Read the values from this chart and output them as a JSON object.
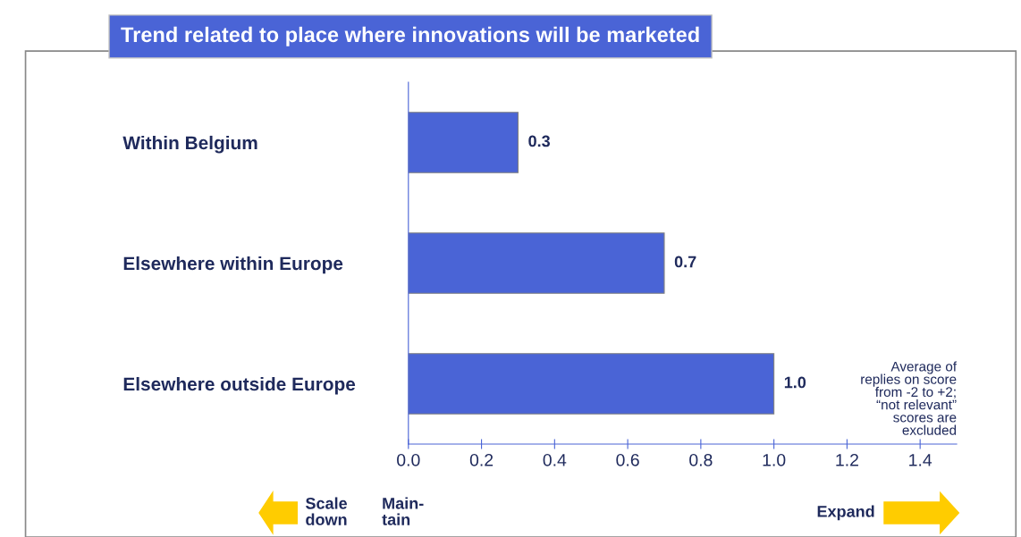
{
  "chart_data": {
    "type": "bar",
    "orientation": "horizontal",
    "title": "Trend related to place where innovations will be marketed",
    "categories": [
      "Within Belgium",
      "Elsewhere within Europe",
      "Elsewhere outside Europe"
    ],
    "values": [
      0.3,
      0.7,
      1.0
    ],
    "value_labels": [
      "0.3",
      "0.7",
      "1.0"
    ],
    "color": "#4a64d6",
    "xlim": [
      0,
      1.5
    ],
    "xticks": [
      {
        "value": 0,
        "label": "0.0"
      },
      0.2,
      0.4,
      0.6,
      0.8,
      {
        "value": 1.0,
        "label": "1.0"
      },
      1.2,
      1.4
    ],
    "grid": false,
    "legend": false,
    "annotations": [
      "Average of\nreplies on score\nfrom -2 to +2;\n“not relevant”\nscores are\nexcluded",
      "Scale\ndown",
      "Main-\ntain",
      "Expand"
    ]
  }
}
